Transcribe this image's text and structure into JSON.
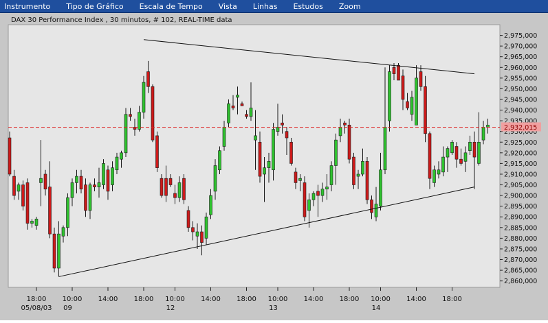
{
  "menu": {
    "items": [
      "Instrumento",
      "Tipo de Gráfico",
      "Escala de Tempo",
      "Vista",
      "Linhas",
      "Estudos",
      "Zoom"
    ]
  },
  "colors": {
    "menubar": "#1f4f9e",
    "background": "#c7c7c7",
    "plot_background": "#e6e6e6",
    "up_candle": "#2fc22f",
    "down_candle": "#cc1a1a",
    "current_price_line": "#dd2222",
    "current_price_label_bg": "#f0a0a0"
  },
  "chart_data": {
    "type": "candlestick",
    "title": "DAX 30 Performance Index , 30 minutos, # 102, REAL-TIME data",
    "y_axis": {
      "position": "right",
      "range": [
        2857,
        2980
      ],
      "ticks": [
        2860,
        2865,
        2870,
        2875,
        2880,
        2885,
        2890,
        2895,
        2900,
        2905,
        2910,
        2915,
        2920,
        2925,
        2930,
        2935,
        2940,
        2945,
        2950,
        2955,
        2960,
        2965,
        2970,
        2975
      ],
      "tick_labels": [
        "2,860,000",
        "2,865,000",
        "2,870,000",
        "2,875,000",
        "2,880,000",
        "2,885,000",
        "2,890,000",
        "2,895,000",
        "2,900,000",
        "2,905,000",
        "2,910,000",
        "2,915,000",
        "2,920,000",
        "2,925,000",
        "2,930,000",
        "2,935,000",
        "2,940,000",
        "2,945,000",
        "2,950,000",
        "2,955,000",
        "2,960,000",
        "2,965,000",
        "2,970,000",
        "2,975,000"
      ]
    },
    "x_axis": {
      "time_labels": [
        {
          "label": "18:00",
          "bar": 6
        },
        {
          "label": "10:00",
          "bar": 14
        },
        {
          "label": "14:00",
          "bar": 22
        },
        {
          "label": "18:00",
          "bar": 30
        },
        {
          "label": "10:00",
          "bar": 37
        },
        {
          "label": "14:00",
          "bar": 45
        },
        {
          "label": "18:00",
          "bar": 53
        },
        {
          "label": "10:00",
          "bar": 60
        },
        {
          "label": "14:00",
          "bar": 68
        },
        {
          "label": "18:00",
          "bar": 76
        },
        {
          "label": "10:00",
          "bar": 83
        },
        {
          "label": "14:00",
          "bar": 91
        },
        {
          "label": "18:00",
          "bar": 99
        }
      ],
      "date_labels": [
        {
          "label": "05/08/03",
          "bar": 6
        },
        {
          "label": "09",
          "bar": 13
        },
        {
          "label": "12",
          "bar": 36
        },
        {
          "label": "13",
          "bar": 59
        },
        {
          "label": "14",
          "bar": 82
        }
      ]
    },
    "current_price": {
      "value": 2932,
      "label": "2,932,015"
    },
    "trendlines": [
      {
        "from": {
          "bar": 11,
          "value": 2862
        },
        "to": {
          "bar": 104,
          "value": 2904
        }
      },
      {
        "from": {
          "bar": 30,
          "value": 2973
        },
        "to": {
          "bar": 104,
          "value": 2957
        }
      }
    ],
    "candles": [
      {
        "o": 2927,
        "h": 2930,
        "l": 2909,
        "c": 2910
      },
      {
        "o": 2909,
        "h": 2912,
        "l": 2898,
        "c": 2900
      },
      {
        "o": 2902,
        "h": 2906,
        "l": 2898,
        "c": 2905
      },
      {
        "o": 2905,
        "h": 2907,
        "l": 2893,
        "c": 2895
      },
      {
        "o": 2906,
        "h": 2908,
        "l": 2884,
        "c": 2887
      },
      {
        "o": 2887,
        "h": 2889,
        "l": 2885,
        "c": 2888
      },
      {
        "o": 2886,
        "h": 2890,
        "l": 2884,
        "c": 2889
      },
      {
        "o": 2906,
        "h": 2926,
        "l": 2895,
        "c": 2908
      },
      {
        "o": 2910,
        "h": 2912,
        "l": 2900,
        "c": 2903
      },
      {
        "o": 2904,
        "h": 2916,
        "l": 2880,
        "c": 2882
      },
      {
        "o": 2882,
        "h": 2885,
        "l": 2864,
        "c": 2866
      },
      {
        "o": 2866,
        "h": 2888,
        "l": 2862,
        "c": 2882
      },
      {
        "o": 2881,
        "h": 2886,
        "l": 2878,
        "c": 2885
      },
      {
        "o": 2885,
        "h": 2901,
        "l": 2881,
        "c": 2899
      },
      {
        "o": 2899,
        "h": 2908,
        "l": 2895,
        "c": 2906
      },
      {
        "o": 2906,
        "h": 2912,
        "l": 2901,
        "c": 2909
      },
      {
        "o": 2909,
        "h": 2912,
        "l": 2901,
        "c": 2903
      },
      {
        "o": 2905,
        "h": 2908,
        "l": 2890,
        "c": 2893
      },
      {
        "o": 2893,
        "h": 2906,
        "l": 2889,
        "c": 2905
      },
      {
        "o": 2905,
        "h": 2908,
        "l": 2902,
        "c": 2904
      },
      {
        "o": 2904,
        "h": 2913,
        "l": 2899,
        "c": 2906
      },
      {
        "o": 2905,
        "h": 2917,
        "l": 2903,
        "c": 2915
      },
      {
        "o": 2912,
        "h": 2914,
        "l": 2898,
        "c": 2902
      },
      {
        "o": 2905,
        "h": 2916,
        "l": 2902,
        "c": 2913
      },
      {
        "o": 2912,
        "h": 2920,
        "l": 2910,
        "c": 2918
      },
      {
        "o": 2917,
        "h": 2921,
        "l": 2913,
        "c": 2920
      },
      {
        "o": 2920,
        "h": 2941,
        "l": 2918,
        "c": 2938
      },
      {
        "o": 2938,
        "h": 2941,
        "l": 2935,
        "c": 2937
      },
      {
        "o": 2932,
        "h": 2936,
        "l": 2928,
        "c": 2931
      },
      {
        "o": 2931,
        "h": 2942,
        "l": 2930,
        "c": 2939
      },
      {
        "o": 2939,
        "h": 2956,
        "l": 2936,
        "c": 2953
      },
      {
        "o": 2958,
        "h": 2963,
        "l": 2948,
        "c": 2951
      },
      {
        "o": 2951,
        "h": 2952,
        "l": 2925,
        "c": 2926
      },
      {
        "o": 2928,
        "h": 2930,
        "l": 2911,
        "c": 2913
      },
      {
        "o": 2908,
        "h": 2910,
        "l": 2899,
        "c": 2900
      },
      {
        "o": 2908,
        "h": 2914,
        "l": 2897,
        "c": 2900
      },
      {
        "o": 2908,
        "h": 2910,
        "l": 2904,
        "c": 2905
      },
      {
        "o": 2901,
        "h": 2905,
        "l": 2896,
        "c": 2899
      },
      {
        "o": 2899,
        "h": 2909,
        "l": 2897,
        "c": 2906
      },
      {
        "o": 2908,
        "h": 2910,
        "l": 2896,
        "c": 2898
      },
      {
        "o": 2893,
        "h": 2895,
        "l": 2883,
        "c": 2885
      },
      {
        "o": 2885,
        "h": 2888,
        "l": 2879,
        "c": 2883
      },
      {
        "o": 2881,
        "h": 2887,
        "l": 2875,
        "c": 2883
      },
      {
        "o": 2883,
        "h": 2886,
        "l": 2872,
        "c": 2878
      },
      {
        "o": 2880,
        "h": 2892,
        "l": 2877,
        "c": 2890
      },
      {
        "o": 2891,
        "h": 2903,
        "l": 2889,
        "c": 2900
      },
      {
        "o": 2902,
        "h": 2917,
        "l": 2898,
        "c": 2914
      },
      {
        "o": 2912,
        "h": 2923,
        "l": 2910,
        "c": 2921
      },
      {
        "o": 2923,
        "h": 2935,
        "l": 2921,
        "c": 2932
      },
      {
        "o": 2934,
        "h": 2945,
        "l": 2932,
        "c": 2943
      },
      {
        "o": 2942,
        "h": 2947,
        "l": 2940,
        "c": 2941
      },
      {
        "o": 2946,
        "h": 2951,
        "l": 2938,
        "c": 2947
      },
      {
        "o": 2943,
        "h": 2944,
        "l": 2942,
        "c": 2942
      },
      {
        "o": 2938,
        "h": 2940,
        "l": 2936,
        "c": 2937
      },
      {
        "o": 2937,
        "h": 2953,
        "l": 2935,
        "c": 2941
      },
      {
        "o": 2926,
        "h": 2940,
        "l": 2912,
        "c": 2928
      },
      {
        "o": 2925,
        "h": 2930,
        "l": 2906,
        "c": 2909
      },
      {
        "o": 2910,
        "h": 2918,
        "l": 2897,
        "c": 2913
      },
      {
        "o": 2913,
        "h": 2920,
        "l": 2906,
        "c": 2916
      },
      {
        "o": 2912,
        "h": 2934,
        "l": 2907,
        "c": 2931
      },
      {
        "o": 2930,
        "h": 2943,
        "l": 2928,
        "c": 2932
      },
      {
        "o": 2934,
        "h": 2938,
        "l": 2929,
        "c": 2933
      },
      {
        "o": 2930,
        "h": 2932,
        "l": 2919,
        "c": 2927
      },
      {
        "o": 2925,
        "h": 2927,
        "l": 2914,
        "c": 2915
      },
      {
        "o": 2911,
        "h": 2913,
        "l": 2903,
        "c": 2906
      },
      {
        "o": 2907,
        "h": 2910,
        "l": 2902,
        "c": 2908
      },
      {
        "o": 2906,
        "h": 2909,
        "l": 2888,
        "c": 2890
      },
      {
        "o": 2893,
        "h": 2901,
        "l": 2885,
        "c": 2898
      },
      {
        "o": 2898,
        "h": 2902,
        "l": 2895,
        "c": 2901
      },
      {
        "o": 2902,
        "h": 2905,
        "l": 2890,
        "c": 2900
      },
      {
        "o": 2900,
        "h": 2906,
        "l": 2897,
        "c": 2903
      },
      {
        "o": 2903,
        "h": 2910,
        "l": 2898,
        "c": 2904
      },
      {
        "o": 2905,
        "h": 2916,
        "l": 2902,
        "c": 2914
      },
      {
        "o": 2914,
        "h": 2929,
        "l": 2905,
        "c": 2926
      },
      {
        "o": 2928,
        "h": 2936,
        "l": 2925,
        "c": 2932
      },
      {
        "o": 2934,
        "h": 2935,
        "l": 2929,
        "c": 2933
      },
      {
        "o": 2933,
        "h": 2936,
        "l": 2915,
        "c": 2917
      },
      {
        "o": 2918,
        "h": 2920,
        "l": 2903,
        "c": 2905
      },
      {
        "o": 2909,
        "h": 2912,
        "l": 2903,
        "c": 2910
      },
      {
        "o": 2910,
        "h": 2922,
        "l": 2909,
        "c": 2916
      },
      {
        "o": 2916,
        "h": 2918,
        "l": 2896,
        "c": 2898
      },
      {
        "o": 2898,
        "h": 2900,
        "l": 2889,
        "c": 2892
      },
      {
        "o": 2890,
        "h": 2904,
        "l": 2888,
        "c": 2896
      },
      {
        "o": 2895,
        "h": 2920,
        "l": 2893,
        "c": 2912
      },
      {
        "o": 2912,
        "h": 2960,
        "l": 2910,
        "c": 2932
      },
      {
        "o": 2935,
        "h": 2961,
        "l": 2930,
        "c": 2958
      },
      {
        "o": 2960,
        "h": 2962,
        "l": 2954,
        "c": 2957
      },
      {
        "o": 2961,
        "h": 2962,
        "l": 2954,
        "c": 2954
      },
      {
        "o": 2956,
        "h": 2959,
        "l": 2940,
        "c": 2945
      },
      {
        "o": 2944,
        "h": 2948,
        "l": 2940,
        "c": 2941
      },
      {
        "o": 2938,
        "h": 2949,
        "l": 2935,
        "c": 2946
      },
      {
        "o": 2933,
        "h": 2961,
        "l": 2933,
        "c": 2955
      },
      {
        "o": 2958,
        "h": 2961,
        "l": 2949,
        "c": 2951
      },
      {
        "o": 2951,
        "h": 2956,
        "l": 2925,
        "c": 2929
      },
      {
        "o": 2929,
        "h": 2930,
        "l": 2903,
        "c": 2908
      },
      {
        "o": 2906,
        "h": 2914,
        "l": 2904,
        "c": 2912
      },
      {
        "o": 2910,
        "h": 2916,
        "l": 2908,
        "c": 2912
      },
      {
        "o": 2911,
        "h": 2923,
        "l": 2909,
        "c": 2918
      },
      {
        "o": 2918,
        "h": 2923,
        "l": 2911,
        "c": 2922
      },
      {
        "o": 2920,
        "h": 2926,
        "l": 2919,
        "c": 2925
      },
      {
        "o": 2923,
        "h": 2925,
        "l": 2913,
        "c": 2917
      },
      {
        "o": 2917,
        "h": 2922,
        "l": 2914,
        "c": 2915
      },
      {
        "o": 2916,
        "h": 2923,
        "l": 2911,
        "c": 2920
      },
      {
        "o": 2921,
        "h": 2928,
        "l": 2919,
        "c": 2925
      },
      {
        "o": 2925,
        "h": 2930,
        "l": 2903,
        "c": 2918
      },
      {
        "o": 2915,
        "h": 2939,
        "l": 2914,
        "c": 2925
      },
      {
        "o": 2926,
        "h": 2935,
        "l": 2924,
        "c": 2932
      },
      {
        "o": 2932,
        "h": 2936,
        "l": 2929,
        "c": 2933
      }
    ]
  }
}
